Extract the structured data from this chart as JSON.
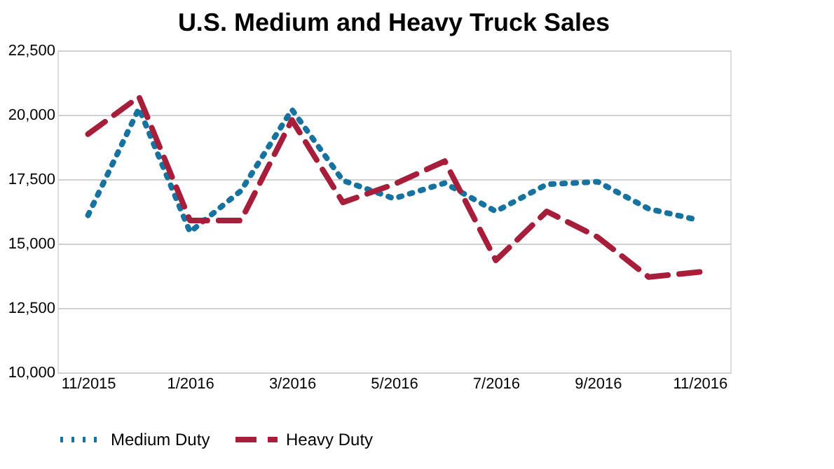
{
  "chart_data": {
    "type": "line",
    "title": "U.S. Medium and Heavy Truck Sales",
    "categories": [
      "11/2015",
      null,
      "1/2016",
      null,
      "3/2016",
      null,
      "5/2016",
      null,
      "7/2016",
      null,
      "9/2016",
      null,
      "11/2016"
    ],
    "series": [
      {
        "name": "Medium Duty",
        "color": "#16729f",
        "line_style": "dotted",
        "values": [
          16100,
          20250,
          15450,
          17050,
          20200,
          17450,
          16750,
          17350,
          16250,
          17300,
          17400,
          16350,
          15900
        ]
      },
      {
        "name": "Heavy Duty",
        "color": "#a61e3a",
        "line_style": "dashed",
        "values": [
          19250,
          20700,
          15900,
          15900,
          19800,
          16600,
          17300,
          18200,
          14350,
          16250,
          15250,
          13700,
          13900
        ]
      }
    ],
    "ylim": [
      10000,
      22500
    ],
    "yticks": [
      {
        "value": 10000,
        "label": "10,000"
      },
      {
        "value": 12500,
        "label": "12,500"
      },
      {
        "value": 15000,
        "label": "15,000"
      },
      {
        "value": 17500,
        "label": "17,500"
      },
      {
        "value": 20000,
        "label": "20,000"
      },
      {
        "value": 22500,
        "label": "22,500"
      }
    ],
    "grid": "y",
    "legend": "bottom",
    "marker": "none"
  }
}
